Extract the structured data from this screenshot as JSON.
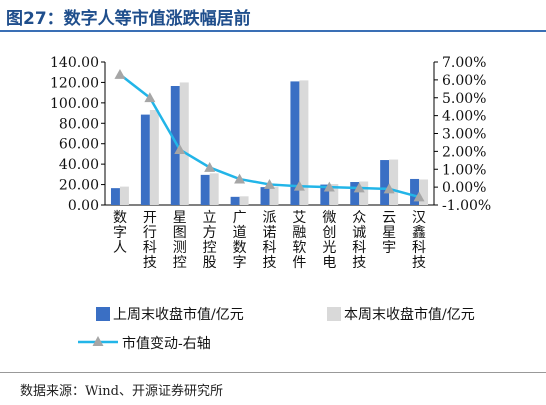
{
  "figure": {
    "title": "图27：数字人等市值涨跌幅居前",
    "source": "数据来源：Wind、开源证券研究所"
  },
  "colors": {
    "bar_last": "#3a6fc4",
    "bar_this": "#d9d9d9",
    "line": "#22b5e8",
    "marker": "#a6a6a6",
    "title": "#1f4e8c"
  },
  "chart_data": {
    "type": "bar",
    "categories": [
      "数字人",
      "开行科技",
      "星图测控",
      "立方控股",
      "广道数字",
      "派诺科技",
      "艾融软件",
      "微创光电",
      "众诚科技",
      "云星宇",
      "汉鑫科技"
    ],
    "series": [
      {
        "name": "上周末收盘市值/亿元",
        "kind": "bar",
        "axis": "left",
        "values": [
          16.5,
          88.5,
          116.5,
          29.5,
          8.0,
          17.5,
          121.0,
          20.0,
          22.5,
          44.0,
          25.5
        ]
      },
      {
        "name": "本周末收盘市值/亿元",
        "kind": "bar",
        "axis": "left",
        "values": [
          18.0,
          93.0,
          120.0,
          31.0,
          8.5,
          18.0,
          122.0,
          20.5,
          23.0,
          44.5,
          25.0
        ]
      },
      {
        "name": "市值变动-右轴",
        "kind": "line",
        "axis": "right",
        "unit": "%",
        "values": [
          6.3,
          5.0,
          2.1,
          1.1,
          0.45,
          0.15,
          0.05,
          0.0,
          -0.05,
          -0.1,
          -0.55
        ]
      }
    ],
    "y_left": {
      "min": 0,
      "max": 140,
      "step": 20,
      "ticks": [
        "0.00",
        "20.00",
        "40.00",
        "60.00",
        "80.00",
        "100.00",
        "120.00",
        "140.00"
      ]
    },
    "y_right": {
      "min": -1,
      "max": 7,
      "step": 1,
      "ticks": [
        "-1.00%",
        "0.00%",
        "1.00%",
        "2.00%",
        "3.00%",
        "4.00%",
        "5.00%",
        "6.00%",
        "7.00%"
      ]
    },
    "grid": false,
    "legend_position": "bottom"
  }
}
